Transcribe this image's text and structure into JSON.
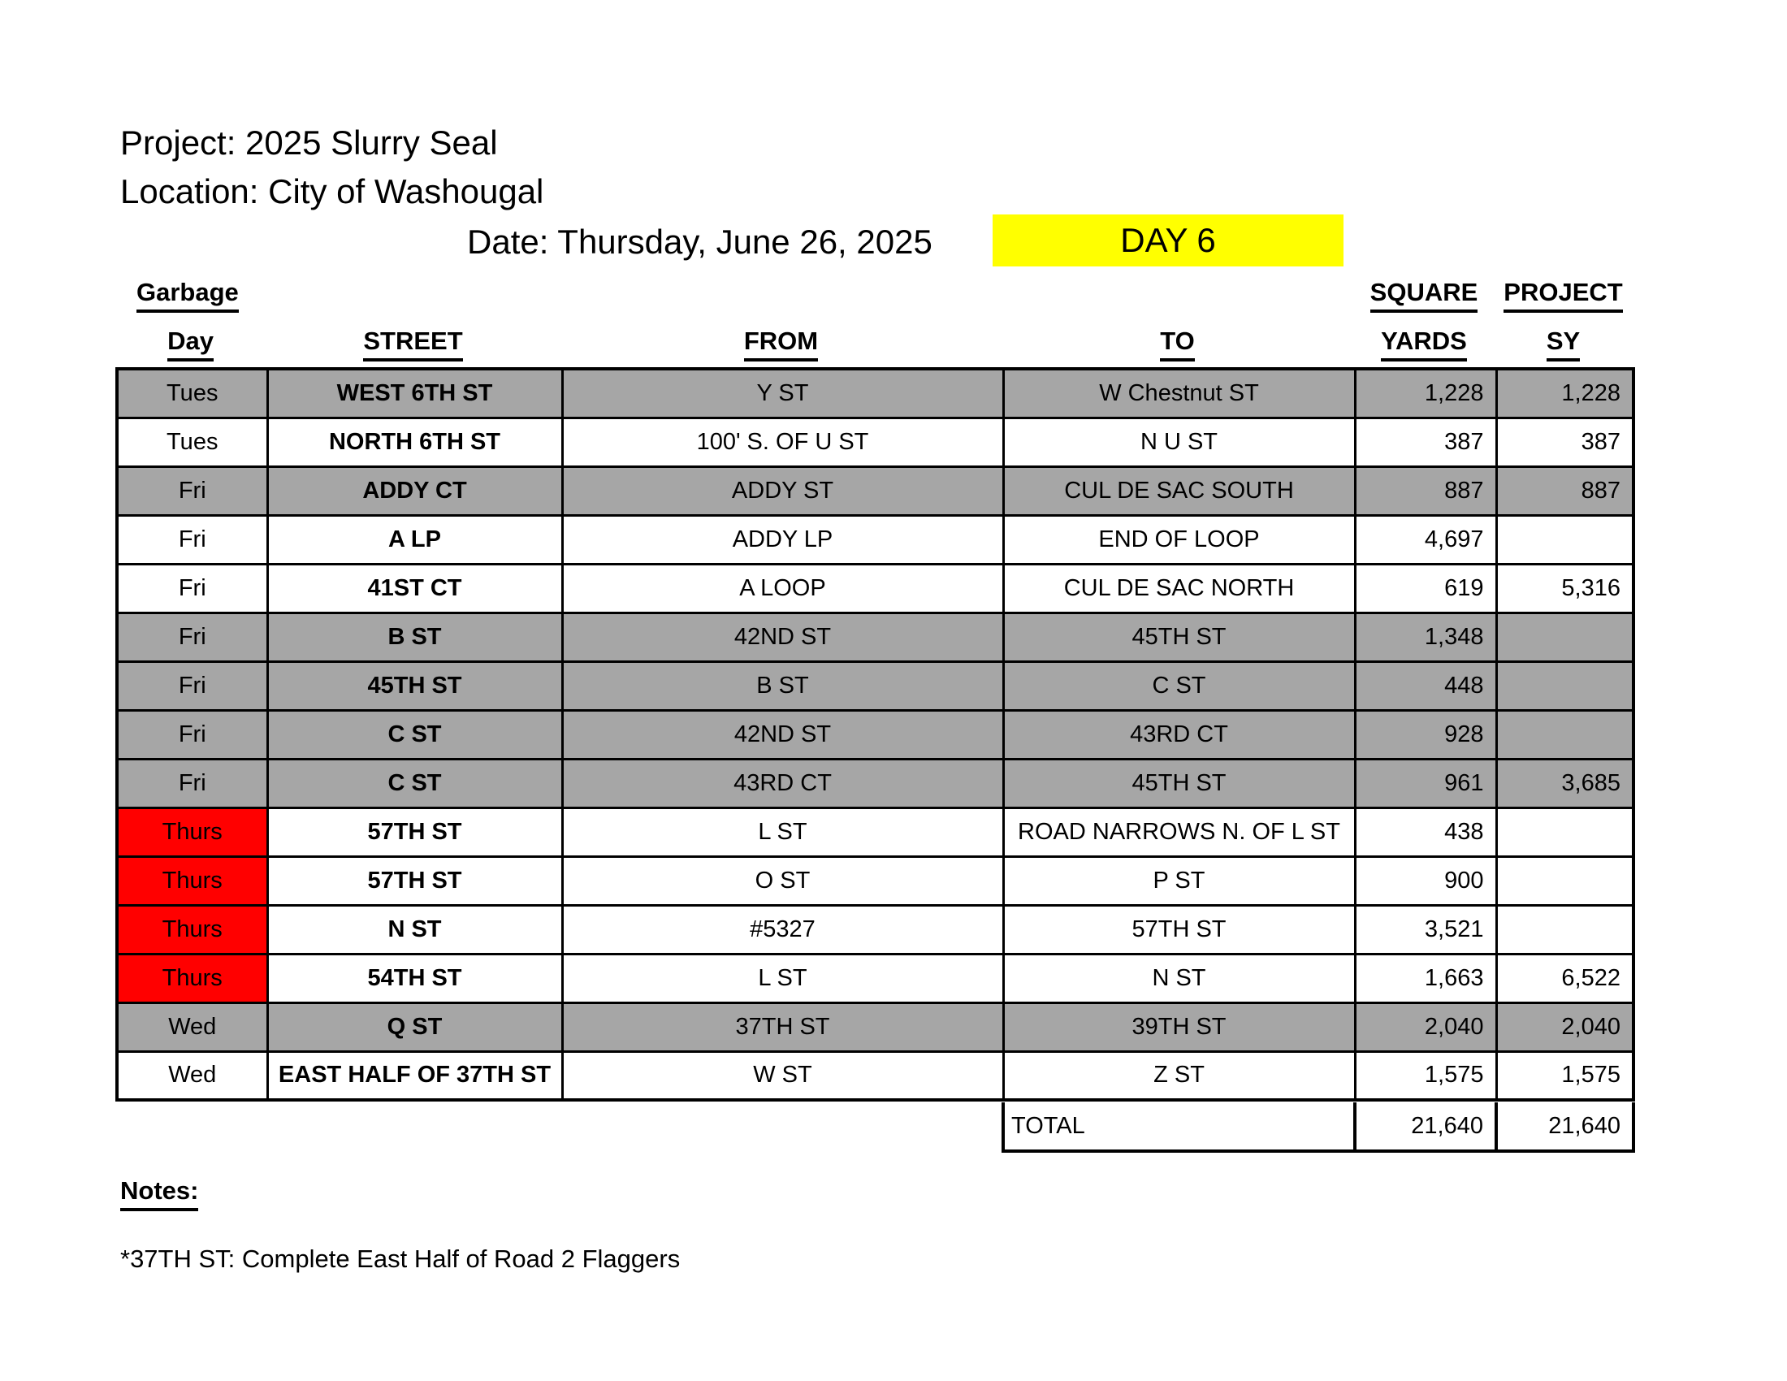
{
  "header": {
    "project_line": "Project: 2025 Slurry Seal",
    "location_line": "Location: City of Washougal",
    "date_line": "Date: Thursday, June 26, 2025",
    "day_badge": "DAY 6"
  },
  "table": {
    "group_headers": {
      "garbage": "Garbage",
      "square": "SQUARE",
      "project": "PROJECT"
    },
    "col_headers": {
      "day": "Day",
      "street": "STREET",
      "from": "FROM",
      "to": "TO",
      "yards": "YARDS",
      "sy": "SY"
    },
    "rows": [
      {
        "day": "Tues",
        "street": "WEST 6TH ST",
        "from": "Y ST",
        "to": "W Chestnut ST",
        "yards": "1,228",
        "sy": "1,228",
        "row_bg": "gray",
        "day_bg": "gray"
      },
      {
        "day": "Tues",
        "street": "NORTH 6TH ST",
        "from": "100' S. OF U ST",
        "to": "N U ST",
        "yards": "387",
        "sy": "387",
        "row_bg": "white",
        "day_bg": "white"
      },
      {
        "day": "Fri",
        "street": "ADDY CT",
        "from": "ADDY ST",
        "to": "CUL DE SAC SOUTH",
        "yards": "887",
        "sy": "887",
        "row_bg": "gray",
        "day_bg": "gray"
      },
      {
        "day": "Fri",
        "street": "A LP",
        "from": "ADDY LP",
        "to": "END OF LOOP",
        "yards": "4,697",
        "sy": "",
        "row_bg": "white",
        "day_bg": "white"
      },
      {
        "day": "Fri",
        "street": "41ST CT",
        "from": "A LOOP",
        "to": "CUL DE SAC NORTH",
        "yards": "619",
        "sy": "5,316",
        "row_bg": "white",
        "day_bg": "white"
      },
      {
        "day": "Fri",
        "street": "B ST",
        "from": "42ND ST",
        "to": "45TH ST",
        "yards": "1,348",
        "sy": "",
        "row_bg": "gray",
        "day_bg": "gray"
      },
      {
        "day": "Fri",
        "street": "45TH ST",
        "from": "B ST",
        "to": "C ST",
        "yards": "448",
        "sy": "",
        "row_bg": "gray",
        "day_bg": "gray"
      },
      {
        "day": "Fri",
        "street": "C ST",
        "from": "42ND ST",
        "to": "43RD CT",
        "yards": "928",
        "sy": "",
        "row_bg": "gray",
        "day_bg": "gray"
      },
      {
        "day": "Fri",
        "street": "C ST",
        "from": "43RD CT",
        "to": "45TH ST",
        "yards": "961",
        "sy": "3,685",
        "row_bg": "gray",
        "day_bg": "gray"
      },
      {
        "day": "Thurs",
        "street": "57TH ST",
        "from": "L ST",
        "to": "ROAD NARROWS N. OF L ST",
        "yards": "438",
        "sy": "",
        "row_bg": "white",
        "day_bg": "red"
      },
      {
        "day": "Thurs",
        "street": "57TH ST",
        "from": "O ST",
        "to": "P ST",
        "yards": "900",
        "sy": "",
        "row_bg": "white",
        "day_bg": "red"
      },
      {
        "day": "Thurs",
        "street": "N ST",
        "from": "#5327",
        "to": "57TH ST",
        "yards": "3,521",
        "sy": "",
        "row_bg": "white",
        "day_bg": "red"
      },
      {
        "day": "Thurs",
        "street": "54TH ST",
        "from": "L ST",
        "to": "N ST",
        "yards": "1,663",
        "sy": "6,522",
        "row_bg": "white",
        "day_bg": "red"
      },
      {
        "day": "Wed",
        "street": "Q ST",
        "from": "37TH ST",
        "to": "39TH ST",
        "yards": "2,040",
        "sy": "2,040",
        "row_bg": "gray",
        "day_bg": "gray"
      },
      {
        "day": "Wed",
        "street": "EAST HALF OF 37TH ST",
        "from": "W ST",
        "to": "Z ST",
        "yards": "1,575",
        "sy": "1,575",
        "row_bg": "white",
        "day_bg": "white"
      }
    ],
    "total": {
      "label": "TOTAL",
      "yards": "21,640",
      "sy": "21,640"
    }
  },
  "notes": {
    "heading": "Notes:",
    "lines": [
      "*37TH ST: Complete East Half of Road 2 Flaggers"
    ]
  },
  "colors": {
    "highlight_yellow": "#FFFF00",
    "row_gray": "#A6A6A6",
    "day_red": "#FF0000"
  }
}
